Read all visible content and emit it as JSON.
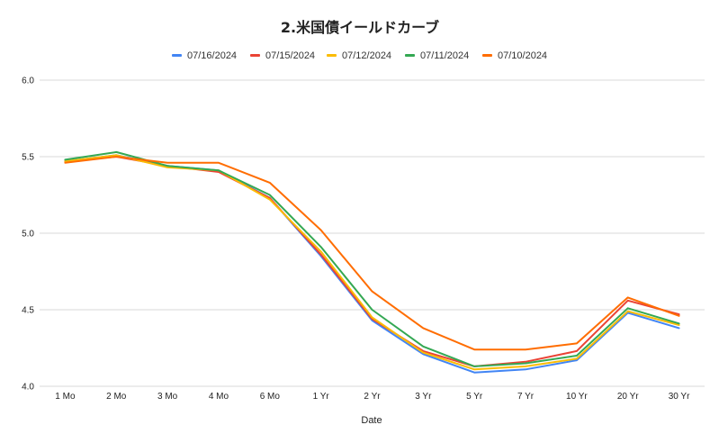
{
  "chart_data": {
    "type": "line",
    "title": "2.米国債イールドカーブ",
    "xlabel": "Date",
    "ylabel": "",
    "ylim": [
      4.0,
      6.0
    ],
    "yticks": [
      "4.0",
      "4.5",
      "5.0",
      "5.5",
      "6.0"
    ],
    "grid": true,
    "legend_position": "top",
    "categories": [
      "1 Mo",
      "2 Mo",
      "3 Mo",
      "4 Mo",
      "6 Mo",
      "1 Yr",
      "2 Yr",
      "3 Yr",
      "5 Yr",
      "7 Yr",
      "10 Yr",
      "20 Yr",
      "30 Yr"
    ],
    "series": [
      {
        "name": "07/16/2024",
        "color": "#4285f4",
        "values": [
          5.47,
          5.51,
          5.44,
          5.41,
          5.23,
          4.85,
          4.43,
          4.21,
          4.09,
          4.11,
          4.17,
          4.48,
          4.38
        ]
      },
      {
        "name": "07/15/2024",
        "color": "#ea4335",
        "values": [
          5.47,
          5.5,
          5.44,
          5.4,
          5.23,
          4.86,
          4.44,
          4.23,
          4.13,
          4.16,
          4.23,
          4.56,
          4.47
        ]
      },
      {
        "name": "07/12/2024",
        "color": "#fbbc04",
        "values": [
          5.47,
          5.51,
          5.43,
          5.41,
          5.22,
          4.88,
          4.45,
          4.22,
          4.11,
          4.13,
          4.18,
          4.49,
          4.4
        ]
      },
      {
        "name": "07/11/2024",
        "color": "#34a853",
        "values": [
          5.48,
          5.53,
          5.44,
          5.41,
          5.25,
          4.91,
          4.5,
          4.26,
          4.13,
          4.15,
          4.2,
          4.51,
          4.41
        ]
      },
      {
        "name": "07/10/2024",
        "color": "#ff6d01",
        "values": [
          5.46,
          5.5,
          5.46,
          5.46,
          5.33,
          5.02,
          4.62,
          4.38,
          4.24,
          4.24,
          4.28,
          4.58,
          4.46
        ]
      }
    ]
  }
}
